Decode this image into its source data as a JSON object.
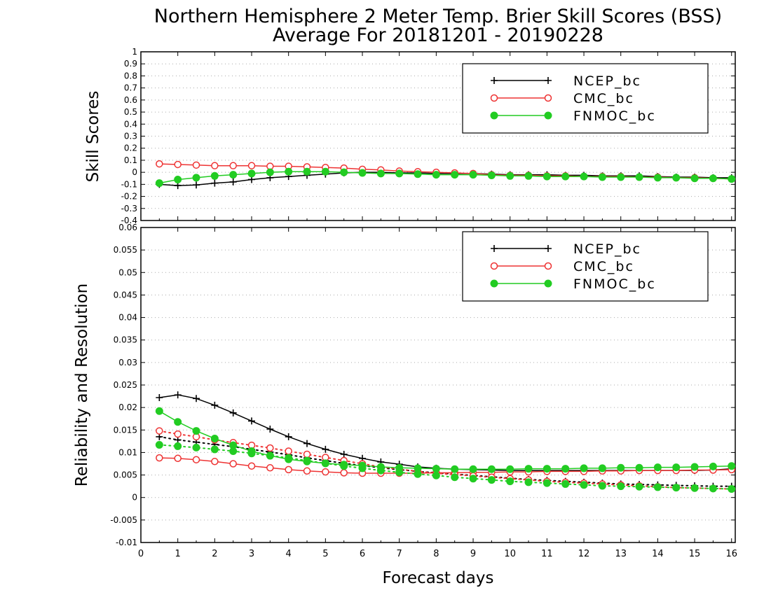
{
  "title": "Northern Hemisphere 2 Meter Temp. Brier Skill Scores (BSS)",
  "subtitle": "Average For 20181201 - 20190228",
  "xlabel": "Forecast days",
  "colors": {
    "NCEP_bc": "#000000",
    "CMC_bc": "#ee3333",
    "FNMOC_bc": "#22cc22"
  },
  "chart_data": [
    {
      "type": "line",
      "ylabel": "Skill Scores",
      "xlim": [
        0,
        16.1
      ],
      "ylim": [
        -0.4,
        1
      ],
      "yticks": [
        "-0.4",
        "-0.3",
        "-0.2",
        "-0.1",
        "0",
        "0.1",
        "0.2",
        "0.3",
        "0.4",
        "0.5",
        "0.6",
        "0.7",
        "0.8",
        "0.9",
        "1"
      ],
      "xticks": [
        "0",
        "1",
        "2",
        "3",
        "4",
        "5",
        "6",
        "7",
        "8",
        "9",
        "10",
        "11",
        "12",
        "13",
        "14",
        "15",
        "16"
      ],
      "grid": true,
      "legend": "top-right",
      "x": [
        0.5,
        1,
        1.5,
        2,
        2.5,
        3,
        3.5,
        4,
        4.5,
        5,
        5.5,
        6,
        6.5,
        7,
        7.5,
        8,
        8.5,
        9,
        9.5,
        10,
        10.5,
        11,
        11.5,
        12,
        12.5,
        13,
        13.5,
        14,
        14.5,
        15,
        15.5,
        16
      ],
      "series": [
        {
          "name": "NCEP_bc",
          "style": "plus-solid",
          "values": [
            -0.1,
            -0.11,
            -0.105,
            -0.09,
            -0.08,
            -0.06,
            -0.045,
            -0.035,
            -0.025,
            -0.015,
            -0.005,
            0,
            0,
            -0.005,
            -0.005,
            -0.01,
            -0.01,
            -0.01,
            -0.015,
            -0.02,
            -0.02,
            -0.02,
            -0.025,
            -0.025,
            -0.03,
            -0.03,
            -0.03,
            -0.035,
            -0.04,
            -0.04,
            -0.045,
            -0.045
          ]
        },
        {
          "name": "CMC_bc",
          "style": "open-circle-solid",
          "values": [
            0.07,
            0.065,
            0.06,
            0.055,
            0.055,
            0.055,
            0.05,
            0.05,
            0.045,
            0.04,
            0.035,
            0.025,
            0.02,
            0.01,
            0.005,
            0,
            -0.005,
            -0.01,
            -0.02,
            -0.025,
            -0.025,
            -0.03,
            -0.03,
            -0.035,
            -0.035,
            -0.035,
            -0.04,
            -0.04,
            -0.045,
            -0.045,
            -0.05,
            -0.055
          ]
        },
        {
          "name": "FNMOC_bc",
          "style": "filled-circle-solid",
          "values": [
            -0.09,
            -0.06,
            -0.045,
            -0.03,
            -0.02,
            -0.01,
            0,
            0.005,
            0.005,
            0.005,
            0,
            -0.005,
            -0.01,
            -0.01,
            -0.015,
            -0.02,
            -0.02,
            -0.02,
            -0.025,
            -0.03,
            -0.03,
            -0.035,
            -0.035,
            -0.035,
            -0.04,
            -0.04,
            -0.04,
            -0.045,
            -0.045,
            -0.05,
            -0.05,
            -0.055
          ]
        }
      ]
    },
    {
      "type": "line",
      "ylabel": "Reliability and Resolution",
      "xlim": [
        0,
        16.1
      ],
      "ylim": [
        -0.01,
        0.06
      ],
      "yticks": [
        "-0.01",
        "-0.005",
        "0",
        "0.005",
        "0.01",
        "0.015",
        "0.02",
        "0.025",
        "0.03",
        "0.035",
        "0.04",
        "0.045",
        "0.05",
        "0.055",
        "0.06"
      ],
      "xticks": [
        "0",
        "1",
        "2",
        "3",
        "4",
        "5",
        "6",
        "7",
        "8",
        "9",
        "10",
        "11",
        "12",
        "13",
        "14",
        "15",
        "16"
      ],
      "grid": true,
      "legend": "top-right",
      "x": [
        0.5,
        1,
        1.5,
        2,
        2.5,
        3,
        3.5,
        4,
        4.5,
        5,
        5.5,
        6,
        6.5,
        7,
        7.5,
        8,
        8.5,
        9,
        9.5,
        10,
        10.5,
        11,
        11.5,
        12,
        12.5,
        13,
        13.5,
        14,
        14.5,
        15,
        15.5,
        16
      ],
      "series": [
        {
          "name": "NCEP_bc",
          "metric": "reliability",
          "style": "plus-solid",
          "values": [
            0.0222,
            0.0228,
            0.022,
            0.0205,
            0.0188,
            0.017,
            0.0152,
            0.0135,
            0.012,
            0.0107,
            0.0096,
            0.0087,
            0.0079,
            0.0074,
            0.0068,
            0.0065,
            0.0063,
            0.0062,
            0.0061,
            0.006,
            0.006,
            0.006,
            0.006,
            0.006,
            0.006,
            0.006,
            0.006,
            0.006,
            0.006,
            0.006,
            0.0061,
            0.0064
          ]
        },
        {
          "name": "NCEP_bc",
          "metric": "resolution",
          "style": "plus-dotted",
          "values": [
            0.0135,
            0.0128,
            0.0123,
            0.0118,
            0.0113,
            0.0107,
            0.0101,
            0.0095,
            0.0088,
            0.0082,
            0.0076,
            0.0071,
            0.0066,
            0.0062,
            0.0058,
            0.0055,
            0.0052,
            0.0049,
            0.0046,
            0.0043,
            0.004,
            0.0038,
            0.0036,
            0.0034,
            0.0032,
            0.003,
            0.0029,
            0.0028,
            0.0027,
            0.0026,
            0.0025,
            0.0025
          ]
        },
        {
          "name": "CMC_bc",
          "metric": "reliability",
          "style": "open-circle-solid",
          "values": [
            0.0088,
            0.0087,
            0.0084,
            0.008,
            0.0075,
            0.007,
            0.0066,
            0.0062,
            0.0059,
            0.0057,
            0.0055,
            0.0054,
            0.0054,
            0.0054,
            0.0054,
            0.0055,
            0.0055,
            0.0056,
            0.0056,
            0.0057,
            0.0057,
            0.0058,
            0.0058,
            0.0058,
            0.0059,
            0.0059,
            0.006,
            0.006,
            0.006,
            0.0061,
            0.0061,
            0.0062
          ]
        },
        {
          "name": "CMC_bc",
          "metric": "resolution",
          "style": "open-circle-dotted",
          "values": [
            0.0148,
            0.0141,
            0.0135,
            0.0128,
            0.0122,
            0.0116,
            0.011,
            0.0103,
            0.0096,
            0.0089,
            0.0082,
            0.0075,
            0.0068,
            0.0063,
            0.0058,
            0.0054,
            0.0051,
            0.0048,
            0.0045,
            0.0042,
            0.0039,
            0.0036,
            0.0034,
            0.0032,
            0.003,
            0.0028,
            0.0026,
            0.0024,
            0.0022,
            0.0021,
            0.002,
            0.0019
          ]
        },
        {
          "name": "FNMOC_bc",
          "metric": "reliability",
          "style": "filled-circle-solid",
          "values": [
            0.0192,
            0.0168,
            0.0148,
            0.0131,
            0.0116,
            0.0103,
            0.0093,
            0.0085,
            0.008,
            0.0076,
            0.0073,
            0.0071,
            0.0068,
            0.0066,
            0.0065,
            0.0064,
            0.0063,
            0.0063,
            0.0063,
            0.0063,
            0.0064,
            0.0064,
            0.0064,
            0.0065,
            0.0065,
            0.0066,
            0.0066,
            0.0067,
            0.0067,
            0.0068,
            0.0069,
            0.007
          ]
        },
        {
          "name": "FNMOC_bc",
          "metric": "resolution",
          "style": "filled-circle-dotted",
          "values": [
            0.0117,
            0.0114,
            0.0111,
            0.0107,
            0.0103,
            0.0098,
            0.0093,
            0.0088,
            0.0082,
            0.0076,
            0.007,
            0.0065,
            0.006,
            0.0056,
            0.0052,
            0.0049,
            0.0045,
            0.0042,
            0.0039,
            0.0036,
            0.0034,
            0.0032,
            0.003,
            0.0028,
            0.0026,
            0.0025,
            0.0024,
            0.0023,
            0.0022,
            0.0021,
            0.002,
            0.0019
          ]
        }
      ]
    }
  ]
}
